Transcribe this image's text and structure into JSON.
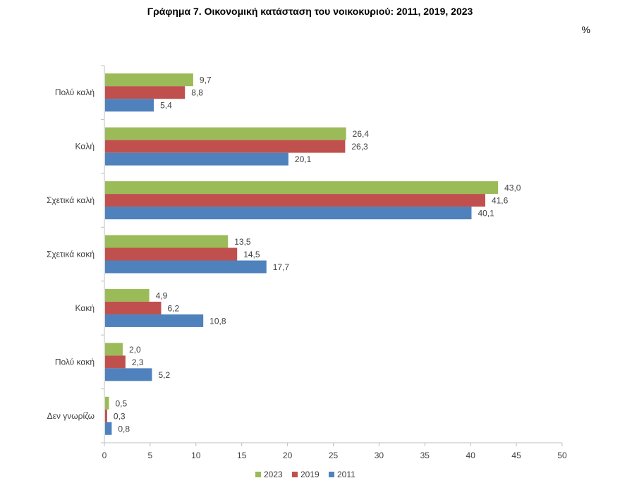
{
  "chart_data": {
    "type": "bar",
    "orientation": "horizontal",
    "title": "Γράφημα 7. Οικονομική κατάσταση του νοικοκυριού: 2011, 2019, 2023",
    "unit_label": "%",
    "categories": [
      "Πολύ καλή",
      "Καλή",
      "Σχετικά καλή",
      "Σχετικά κακή",
      "Κακή",
      "Πολύ κακή",
      "Δεν γνωρίζω"
    ],
    "series": [
      {
        "name": "2023",
        "color": "#9bbb59",
        "values": [
          9.7,
          26.4,
          43.0,
          13.5,
          4.9,
          2.0,
          0.5
        ],
        "labels": [
          "9,7",
          "26,4",
          "43,0",
          "13,5",
          "4,9",
          "2,0",
          "0,5"
        ]
      },
      {
        "name": "2019",
        "color": "#c0504d",
        "values": [
          8.8,
          26.3,
          41.6,
          14.5,
          6.2,
          2.3,
          0.3
        ],
        "labels": [
          "8,8",
          "26,3",
          "41,6",
          "14,5",
          "6,2",
          "2,3",
          "0,3"
        ]
      },
      {
        "name": "2011",
        "color": "#4f81bd",
        "values": [
          5.4,
          20.1,
          40.1,
          17.7,
          10.8,
          5.2,
          0.8
        ],
        "labels": [
          "5,4",
          "20,1",
          "40,1",
          "17,7",
          "10,8",
          "5,2",
          "0,8"
        ]
      }
    ],
    "xlim": [
      0,
      50
    ],
    "xticks": [
      "0",
      "5",
      "10",
      "15",
      "20",
      "25",
      "30",
      "35",
      "40",
      "45",
      "50"
    ],
    "grid": false,
    "legend_position": "bottom"
  }
}
